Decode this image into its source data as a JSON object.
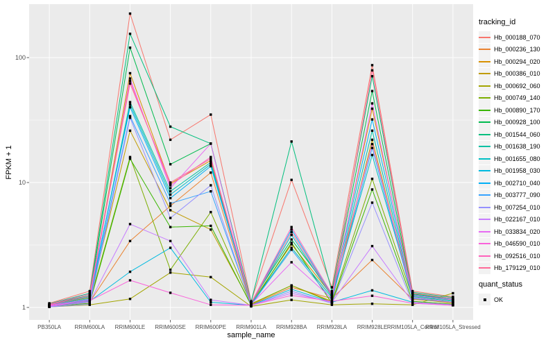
{
  "chart_data": {
    "type": "line",
    "title": "",
    "xlabel": "sample_name",
    "ylabel": "FPKM + 1",
    "y_scale": "log10",
    "y_ticks": [
      "1",
      "10",
      "100"
    ],
    "y_tick_values": [
      1,
      10,
      100
    ],
    "y_minor_values": [
      3.1623,
      31.623
    ],
    "ylim": [
      1,
      250
    ],
    "grid": true,
    "legend_position": "right",
    "point_marker": "black-square",
    "categories": [
      "PB350LA",
      "RRIM600LA",
      "RRIM600LE",
      "RRIM600SE",
      "RRIM600PE",
      "RRIM901LA",
      "RRIM928BA",
      "RRIM928LA",
      "RRIM928LE",
      "RRIM105LA_Control",
      "RRIM105LA_Stressed"
    ],
    "series": [
      {
        "name": "Hb_000188_070",
        "color": "#F8766D",
        "values": [
          1.08,
          1.35,
          225,
          22,
          35,
          1.12,
          10.5,
          1.45,
          87,
          1.35,
          1.22
        ]
      },
      {
        "name": "Hb_000236_130",
        "color": "#EA8331",
        "values": [
          1.02,
          1.1,
          3.4,
          6.5,
          12,
          1.05,
          1.45,
          1.18,
          2.4,
          1.16,
          1.1
        ]
      },
      {
        "name": "Hb_000294_020",
        "color": "#D89000",
        "values": [
          1.05,
          1.2,
          75,
          9.8,
          15,
          1.08,
          3.2,
          1.25,
          39,
          1.3,
          1.15
        ]
      },
      {
        "name": "Hb_000386_010",
        "color": "#C09B00",
        "values": [
          1.03,
          1.15,
          26,
          6.0,
          4.2,
          1.06,
          1.5,
          1.12,
          22,
          1.18,
          1.08
        ]
      },
      {
        "name": "Hb_000692_060",
        "color": "#A3A500",
        "values": [
          1.01,
          1.05,
          1.17,
          1.9,
          1.75,
          1.02,
          1.15,
          1.05,
          1.07,
          1.05,
          1.3
        ]
      },
      {
        "name": "Hb_000749_140",
        "color": "#7CAE00",
        "values": [
          1.04,
          1.12,
          16,
          2.0,
          5.8,
          1.07,
          1.5,
          1.1,
          10.7,
          1.2,
          1.1
        ]
      },
      {
        "name": "Hb_000890_170",
        "color": "#39B600",
        "values": [
          1.02,
          1.08,
          15.5,
          4.4,
          4.5,
          1.04,
          3.3,
          1.08,
          8.8,
          1.12,
          1.06
        ]
      },
      {
        "name": "Hb_000928_100",
        "color": "#00BB4E",
        "values": [
          1.06,
          1.25,
          120,
          14,
          20.5,
          1.1,
          3.5,
          1.3,
          54,
          1.28,
          1.18
        ]
      },
      {
        "name": "Hb_001544_060",
        "color": "#00BF7D",
        "values": [
          1.07,
          1.3,
          155,
          28,
          20.5,
          1.11,
          21.3,
          1.35,
          71,
          1.32,
          1.2
        ]
      },
      {
        "name": "Hb_001638_190",
        "color": "#00C1A3",
        "values": [
          1.03,
          1.15,
          44,
          8.5,
          14.5,
          1.06,
          3.0,
          1.2,
          26,
          1.22,
          1.12
        ]
      },
      {
        "name": "Hb_001655_080",
        "color": "#00BFC4",
        "values": [
          1.04,
          1.18,
          42,
          8.0,
          14,
          1.07,
          3.8,
          1.22,
          16.6,
          1.24,
          1.14
        ]
      },
      {
        "name": "Hb_001958_030",
        "color": "#00BAE0",
        "values": [
          1.02,
          1.12,
          1.93,
          3.0,
          1.1,
          1.04,
          1.4,
          1.1,
          1.37,
          1.1,
          1.05
        ]
      },
      {
        "name": "Hb_002710_040",
        "color": "#00B0F6",
        "values": [
          1.05,
          1.22,
          40,
          7.5,
          13.5,
          1.08,
          4.2,
          1.25,
          32,
          1.26,
          1.16
        ]
      },
      {
        "name": "Hb_003777_090",
        "color": "#35A2FF",
        "values": [
          1.03,
          1.14,
          34,
          6.8,
          8.5,
          1.05,
          2.9,
          1.15,
          18.9,
          1.18,
          1.1
        ]
      },
      {
        "name": "Hb_007254_010",
        "color": "#9590FF",
        "values": [
          1.01,
          1.06,
          33,
          5.2,
          9.5,
          1.03,
          1.35,
          1.08,
          6.9,
          1.08,
          1.04
        ]
      },
      {
        "name": "Hb_022167_010",
        "color": "#C77CFF",
        "values": [
          1.02,
          1.1,
          4.65,
          3.4,
          1.15,
          1.04,
          1.3,
          1.1,
          3.1,
          1.1,
          1.05
        ]
      },
      {
        "name": "Hb_033834_020",
        "color": "#E76BF3",
        "values": [
          1.04,
          1.16,
          68,
          9.0,
          20.5,
          1.06,
          2.3,
          1.18,
          43,
          1.2,
          1.1
        ]
      },
      {
        "name": "Hb_046590_010",
        "color": "#FA62DB",
        "values": [
          1.03,
          1.13,
          1.65,
          1.31,
          1.05,
          1.04,
          1.25,
          1.12,
          1.24,
          1.08,
          1.04
        ]
      },
      {
        "name": "Hb_092516_010",
        "color": "#FF62BC",
        "values": [
          1.06,
          1.28,
          65,
          9.5,
          16,
          1.09,
          4.4,
          1.28,
          20.3,
          1.25,
          1.15
        ]
      },
      {
        "name": "Hb_179129_010",
        "color": "#FF6A98",
        "values": [
          1.05,
          1.24,
          62,
          10,
          15.5,
          1.08,
          4.0,
          1.24,
          79,
          1.3,
          1.18
        ]
      }
    ]
  },
  "legend": {
    "title": "tracking_id"
  },
  "legend2": {
    "title": "quant_status",
    "items": [
      {
        "label": "OK",
        "marker": "black-square"
      }
    ]
  },
  "colors": {
    "panel_bg": "#EBEBEB",
    "grid": "#FFFFFF",
    "tick_text": "#4D4D4D",
    "tick_mark": "#333333",
    "point": "#000000",
    "legend_key_bg": "#F2F2F2"
  }
}
